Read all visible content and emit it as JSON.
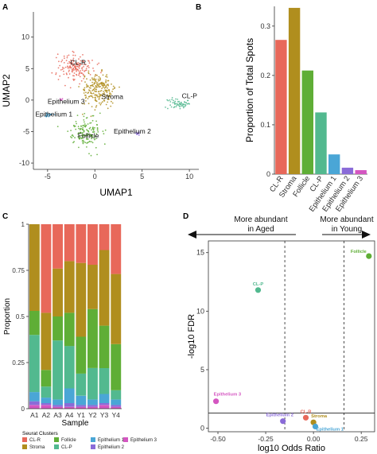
{
  "panels": {
    "a": "A",
    "b": "B",
    "c": "C",
    "d": "D"
  },
  "colors": {
    "CL-R": "#e8685a",
    "Stroma": "#b08e1e",
    "Follicle": "#5fae36",
    "CL-P": "#52b98f",
    "Epithelium 1": "#4aa6d6",
    "Epithelium 2": "#8a6bd8",
    "Epithelium 3": "#d456c1",
    "grid": "#dddddd",
    "axis": "#333333"
  },
  "chart_data": [
    {
      "panel": "A",
      "type": "scatter",
      "xlabel": "UMAP1",
      "ylabel": "UMAP2",
      "xlim": [
        -6.5,
        11
      ],
      "ylim": [
        -11,
        14
      ],
      "xticks": [
        -5,
        0,
        5,
        10
      ],
      "yticks": [
        -10,
        -5,
        0,
        5,
        10
      ],
      "clusters": [
        {
          "name": "CL-R",
          "cx": -2.0,
          "cy": 5.3,
          "sx": 1.6,
          "sy": 1.8,
          "n": 160
        },
        {
          "name": "Stroma",
          "cx": 0.3,
          "cy": 1.5,
          "sx": 1.4,
          "sy": 2.2,
          "n": 220
        },
        {
          "name": "Follicle",
          "cx": -1.0,
          "cy": -5.0,
          "sx": 1.4,
          "sy": 1.9,
          "n": 150
        },
        {
          "name": "CL-P",
          "cx": 8.8,
          "cy": -0.5,
          "sx": 0.9,
          "sy": 0.7,
          "n": 60
        },
        {
          "name": "Epithelium 1",
          "cx": -4.9,
          "cy": -2.3,
          "sx": 0.35,
          "sy": 0.35,
          "n": 18
        },
        {
          "name": "Epithelium 2",
          "cx": 4.5,
          "cy": -5.3,
          "sx": 0.3,
          "sy": 0.3,
          "n": 10
        },
        {
          "name": "Epithelium 3",
          "cx": -3.6,
          "cy": 0.2,
          "sx": 0.2,
          "sy": 0.2,
          "n": 5
        }
      ],
      "labels": [
        {
          "text": "CL-R",
          "x": -2.6,
          "y": 5.6
        },
        {
          "text": "Epithelium 3",
          "x": -5.0,
          "y": -0.6
        },
        {
          "text": "Stroma",
          "x": 0.7,
          "y": 0.2
        },
        {
          "text": "CL-P",
          "x": 9.2,
          "y": 0.3
        },
        {
          "text": "Epithelium 1",
          "x": -6.3,
          "y": -2.6
        },
        {
          "text": "Follicle",
          "x": -1.8,
          "y": -6.0
        },
        {
          "text": "Epithelium 2",
          "x": 2.0,
          "y": -5.3
        }
      ]
    },
    {
      "panel": "B",
      "type": "bar",
      "ylabel": "Proportion of Total Spots",
      "categories": [
        "CL-R",
        "Stroma",
        "Follicle",
        "CL-P",
        "Epithelium 1",
        "Epithelium 2",
        "Epithelium 3"
      ],
      "values": [
        0.272,
        0.337,
        0.21,
        0.125,
        0.04,
        0.013,
        0.008
      ],
      "ylim": [
        0,
        0.34
      ],
      "yticks": [
        0.0,
        0.1,
        0.2,
        0.3
      ]
    },
    {
      "panel": "C",
      "type": "bar",
      "stacked": true,
      "xlabel": "Sample",
      "ylabel": "Proportion",
      "categories": [
        "A1",
        "A2",
        "A3",
        "A4",
        "Y1",
        "Y2",
        "Y3",
        "Y4"
      ],
      "ylim": [
        0,
        1
      ],
      "yticks": [
        0.0,
        0.25,
        0.5,
        0.75,
        1.0
      ],
      "series_order_bottom_to_top": [
        "Epithelium 3",
        "Epithelium 2",
        "Epithelium 1",
        "CL-P",
        "Follicle",
        "Stroma",
        "CL-R"
      ],
      "series": [
        {
          "name": "Epithelium 3",
          "values": [
            0.02,
            0.02,
            0.01,
            0.01,
            0.01,
            0.01,
            0.02,
            0.01
          ]
        },
        {
          "name": "Epithelium 2",
          "values": [
            0.02,
            0.01,
            0.01,
            0.02,
            0.01,
            0.01,
            0.01,
            0.01
          ]
        },
        {
          "name": "Epithelium 1",
          "values": [
            0.05,
            0.03,
            0.03,
            0.08,
            0.05,
            0.03,
            0.05,
            0.03
          ]
        },
        {
          "name": "CL-P",
          "values": [
            0.31,
            0.06,
            0.32,
            0.23,
            0.12,
            0.17,
            0.14,
            0.05
          ]
        },
        {
          "name": "Follicle",
          "values": [
            0.13,
            0.09,
            0.13,
            0.18,
            0.2,
            0.32,
            0.23,
            0.25
          ]
        },
        {
          "name": "Stroma",
          "values": [
            0.47,
            0.31,
            0.26,
            0.28,
            0.4,
            0.24,
            0.41,
            0.38
          ]
        },
        {
          "name": "CL-R",
          "values": [
            0.0,
            0.48,
            0.24,
            0.2,
            0.21,
            0.22,
            0.14,
            0.27
          ]
        }
      ],
      "legend_title": "Seurat Clusters",
      "legend_items": [
        "CL-R",
        "Follicle",
        "Epithelium 1",
        "Epithelium 3",
        "Stroma",
        "CL-P",
        "Epithelium 2"
      ]
    },
    {
      "panel": "D",
      "type": "scatter",
      "xlabel": "log10 Odds Ratio",
      "ylabel": "-log10 FDR",
      "xlim": [
        -0.55,
        0.32
      ],
      "ylim": [
        -0.3,
        16
      ],
      "xticks": [
        -0.5,
        -0.25,
        0.0,
        0.25
      ],
      "xtick_labels": [
        "-0.50",
        "-0.25",
        "0.00",
        "0.25"
      ],
      "yticks": [
        0,
        5,
        10,
        15
      ],
      "points": [
        {
          "name": "Follicle",
          "x": 0.29,
          "y": 14.7
        },
        {
          "name": "CL-P",
          "x": -0.29,
          "y": 11.8
        },
        {
          "name": "Epithelium 3",
          "x": -0.51,
          "y": 2.3
        },
        {
          "name": "CL-R",
          "x": -0.04,
          "y": 0.9
        },
        {
          "name": "Epithelium 2",
          "x": -0.16,
          "y": 0.6
        },
        {
          "name": "Stroma",
          "x": 0.0,
          "y": 0.5
        },
        {
          "name": "Epithelium 1",
          "x": 0.01,
          "y": 0.15
        }
      ],
      "hline_y": 1.3,
      "vlines_x": [
        -0.15,
        0.16
      ],
      "annotations": {
        "left": "More abundant in Aged",
        "right": "More abundant in Young"
      }
    }
  ]
}
